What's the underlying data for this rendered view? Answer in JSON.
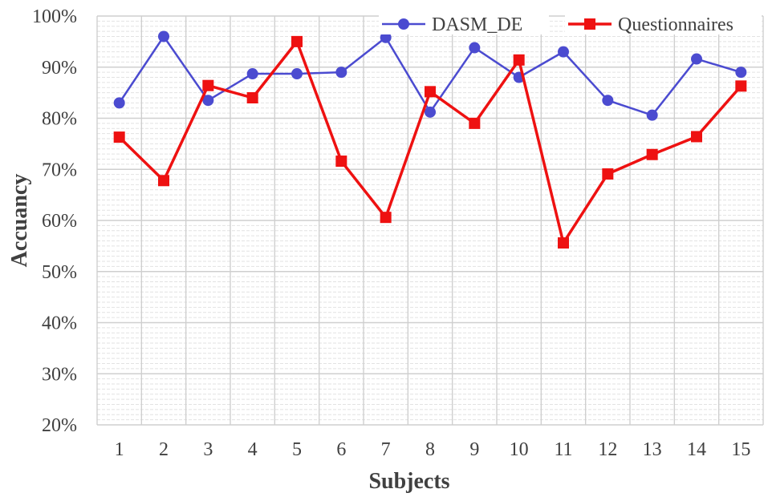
{
  "chart_data": {
    "type": "line",
    "title": "",
    "xlabel": "Subjects",
    "ylabel": "Accuancy",
    "categories": [
      "1",
      "2",
      "3",
      "4",
      "5",
      "6",
      "7",
      "8",
      "9",
      "10",
      "11",
      "12",
      "13",
      "14",
      "15"
    ],
    "ylim": [
      20,
      100
    ],
    "ytick_labels": [
      "20%",
      "30%",
      "40%",
      "50%",
      "60%",
      "70%",
      "80%",
      "90%",
      "100%"
    ],
    "grid": true,
    "legend_position": "top-right",
    "series": [
      {
        "name": "DASM_DE",
        "color": "#4b4bd0",
        "marker": "circle",
        "values": [
          83.0,
          96.0,
          83.5,
          88.7,
          88.7,
          89.0,
          95.8,
          81.2,
          93.8,
          88.0,
          93.0,
          83.5,
          80.6,
          91.6,
          89.0
        ]
      },
      {
        "name": "Questionnaires",
        "color": "#ee1111",
        "marker": "square",
        "values": [
          76.3,
          67.8,
          86.4,
          84.0,
          95.0,
          71.6,
          60.6,
          85.2,
          79.0,
          91.4,
          55.6,
          69.1,
          72.9,
          76.4,
          86.3
        ]
      }
    ]
  }
}
